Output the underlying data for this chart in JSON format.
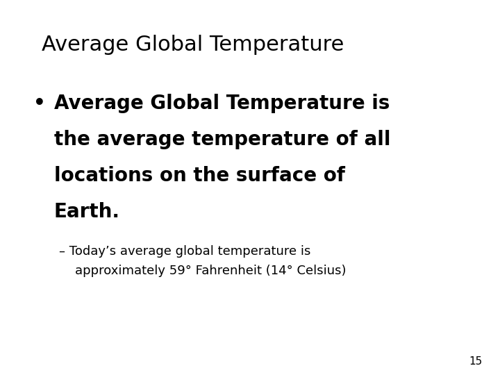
{
  "title": "Average Global Temperature",
  "bullet_lines": [
    "Average Global Temperature is",
    "the average temperature of all",
    "locations on the surface of",
    "Earth."
  ],
  "sub_line1": "– Today’s average global temperature is",
  "sub_line2": "    approximately 59° Fahrenheit (14° Celsius)",
  "page_number": "15",
  "background_color": "#ffffff",
  "text_color": "#000000",
  "title_fontsize": 22,
  "bullet_fontsize": 20,
  "sub_fontsize": 13,
  "page_num_fontsize": 11
}
